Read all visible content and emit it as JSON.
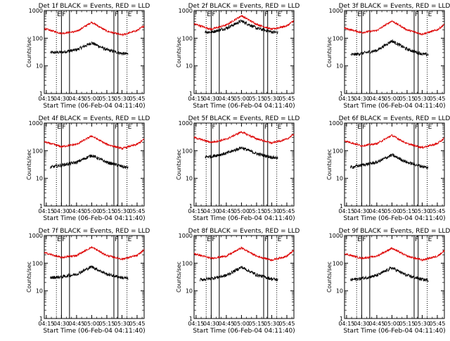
{
  "figure": {
    "start_time_label": "Start Time (06-Feb-04 04:11:40)",
    "ylabel": "Counts/sec",
    "x_tick_labels": [
      "04:15",
      "04:30",
      "04:45",
      "05:00",
      "05:15",
      "05:30",
      "05:45"
    ],
    "y_tick_labels": [
      "1",
      "10",
      "100",
      "1000"
    ],
    "colors": {
      "black_series": "#000000",
      "red_series": "#dd0000",
      "frame": "#000000"
    }
  },
  "chart_data": [
    {
      "type": "line",
      "title": "Det 1f BLACK = Events, RED = LLD",
      "xlabel": "Start Time (06-Feb-04 04:11:40)",
      "ylabel": "Counts/sec",
      "x_unit": "UT time",
      "xlim": [
        "04:13",
        "05:52"
      ],
      "ylim": [
        1,
        1000
      ],
      "yscale": "log",
      "markers": [
        {
          "label": "E",
          "time": "04:25",
          "style": "dotted"
        },
        {
          "label": "F",
          "time": "04:30",
          "style": "solid"
        },
        {
          "label": "",
          "time": "04:38",
          "style": "solid"
        },
        {
          "label": "F",
          "time": "05:22",
          "style": "solid"
        },
        {
          "label": "",
          "time": "05:26",
          "style": "solid"
        },
        {
          "label": "E",
          "time": "05:35",
          "style": "dotted"
        }
      ],
      "series": [
        {
          "color": "black",
          "start": "04:19",
          "end": "05:36",
          "x": [
            "04:19",
            "04:30",
            "04:45",
            "05:00",
            "05:15",
            "05:30",
            "05:36"
          ],
          "values": [
            30,
            31,
            38,
            68,
            38,
            28,
            27
          ]
        },
        {
          "color": "red",
          "start": "04:13",
          "end": "05:52",
          "x": [
            "04:13",
            "04:30",
            "04:45",
            "05:00",
            "05:15",
            "05:30",
            "05:45",
            "05:52"
          ],
          "values": [
            220,
            150,
            175,
            380,
            180,
            130,
            190,
            280
          ]
        }
      ]
    },
    {
      "type": "line",
      "title": "Det 2f BLACK = Events, RED = LLD",
      "xlabel": "Start Time (06-Feb-04 04:11:40)",
      "ylabel": "Counts/sec",
      "x_unit": "UT time",
      "xlim": [
        "04:13",
        "05:52"
      ],
      "ylim": [
        1,
        1000
      ],
      "yscale": "log",
      "markers": [
        {
          "label": "E",
          "time": "04:25",
          "style": "dotted"
        },
        {
          "label": "F",
          "time": "04:30",
          "style": "solid"
        },
        {
          "label": "",
          "time": "04:38",
          "style": "solid"
        },
        {
          "label": "F",
          "time": "05:22",
          "style": "solid"
        },
        {
          "label": "",
          "time": "05:26",
          "style": "solid"
        },
        {
          "label": "E",
          "time": "05:35",
          "style": "dotted"
        }
      ],
      "series": [
        {
          "color": "black",
          "start": "04:24",
          "end": "05:36",
          "x": [
            "04:24",
            "04:30",
            "04:45",
            "05:00",
            "05:15",
            "05:30",
            "05:36"
          ],
          "values": [
            170,
            165,
            230,
            420,
            230,
            170,
            160
          ]
        },
        {
          "color": "red",
          "start": "04:13",
          "end": "05:52",
          "x": [
            "04:13",
            "04:30",
            "04:45",
            "05:00",
            "05:15",
            "05:30",
            "05:45",
            "05:52"
          ],
          "values": [
            330,
            210,
            300,
            650,
            320,
            210,
            280,
            430
          ]
        }
      ]
    },
    {
      "type": "line",
      "title": "Det 3f BLACK = Events, RED = LLD",
      "xlabel": "Start Time (06-Feb-04 04:11:40)",
      "ylabel": "Counts/sec",
      "x_unit": "UT time",
      "xlim": [
        "04:13",
        "05:52"
      ],
      "ylim": [
        1,
        1000
      ],
      "yscale": "log",
      "markers": [
        {
          "label": "E",
          "time": "04:25",
          "style": "dotted"
        },
        {
          "label": "F",
          "time": "04:30",
          "style": "solid"
        },
        {
          "label": "",
          "time": "04:38",
          "style": "solid"
        },
        {
          "label": "F",
          "time": "05:22",
          "style": "solid"
        },
        {
          "label": "",
          "time": "05:26",
          "style": "solid"
        },
        {
          "label": "E",
          "time": "05:35",
          "style": "dotted"
        }
      ],
      "series": [
        {
          "color": "black",
          "start": "04:19",
          "end": "05:36",
          "x": [
            "04:19",
            "04:30",
            "04:45",
            "05:00",
            "05:15",
            "05:30",
            "05:36"
          ],
          "values": [
            25,
            28,
            36,
            80,
            40,
            27,
            25
          ]
        },
        {
          "color": "red",
          "start": "04:13",
          "end": "05:52",
          "x": [
            "04:13",
            "04:30",
            "04:45",
            "05:00",
            "05:15",
            "05:30",
            "05:45",
            "05:52"
          ],
          "values": [
            230,
            160,
            190,
            420,
            200,
            140,
            200,
            310
          ]
        }
      ]
    },
    {
      "type": "line",
      "title": "Det 4f BLACK = Events, RED = LLD",
      "xlabel": "Start Time (06-Feb-04 04:11:40)",
      "ylabel": "Counts/sec",
      "x_unit": "UT time",
      "xlim": [
        "04:13",
        "05:52"
      ],
      "ylim": [
        1,
        1000
      ],
      "yscale": "log",
      "markers": [
        {
          "label": "E",
          "time": "04:25",
          "style": "dotted"
        },
        {
          "label": "F",
          "time": "04:30",
          "style": "solid"
        },
        {
          "label": "",
          "time": "04:38",
          "style": "solid"
        },
        {
          "label": "F",
          "time": "05:22",
          "style": "solid"
        },
        {
          "label": "",
          "time": "05:26",
          "style": "solid"
        },
        {
          "label": "E",
          "time": "05:35",
          "style": "dotted"
        }
      ],
      "series": [
        {
          "color": "black",
          "start": "04:19",
          "end": "05:36",
          "x": [
            "04:19",
            "04:30",
            "04:45",
            "05:00",
            "05:15",
            "05:30",
            "05:36"
          ],
          "values": [
            25,
            30,
            38,
            68,
            38,
            27,
            24
          ]
        },
        {
          "color": "red",
          "start": "04:13",
          "end": "05:52",
          "x": [
            "04:13",
            "04:30",
            "04:45",
            "05:00",
            "05:15",
            "05:30",
            "05:45",
            "05:52"
          ],
          "values": [
            210,
            140,
            170,
            340,
            170,
            120,
            170,
            260
          ]
        }
      ]
    },
    {
      "type": "line",
      "title": "Det 5f BLACK = Events, RED = LLD",
      "xlabel": "Start Time (06-Feb-04 04:11:40)",
      "ylabel": "Counts/sec",
      "x_unit": "UT time",
      "xlim": [
        "04:13",
        "05:52"
      ],
      "ylim": [
        1,
        1000
      ],
      "yscale": "log",
      "markers": [
        {
          "label": "",
          "time": "04:25",
          "style": "dotted"
        },
        {
          "label": "F",
          "time": "04:30",
          "style": "solid"
        },
        {
          "label": "",
          "time": "04:38",
          "style": "solid"
        },
        {
          "label": "F",
          "time": "05:22",
          "style": "solid"
        },
        {
          "label": "",
          "time": "05:26",
          "style": "solid"
        },
        {
          "label": "E",
          "time": "05:35",
          "style": "dotted"
        }
      ],
      "series": [
        {
          "color": "black",
          "start": "04:24",
          "end": "05:36",
          "x": [
            "04:24",
            "04:30",
            "04:45",
            "05:00",
            "05:15",
            "05:30",
            "05:36"
          ],
          "values": [
            60,
            62,
            80,
            130,
            78,
            58,
            55
          ]
        },
        {
          "color": "red",
          "start": "04:13",
          "end": "05:52",
          "x": [
            "04:13",
            "04:30",
            "04:45",
            "05:00",
            "05:15",
            "05:30",
            "05:45",
            "05:52"
          ],
          "values": [
            300,
            200,
            260,
            480,
            270,
            190,
            260,
            400
          ]
        }
      ]
    },
    {
      "type": "line",
      "title": "Det 6f BLACK = Events, RED = LLD",
      "xlabel": "Start Time (06-Feb-04 04:11:40)",
      "ylabel": "Counts/sec",
      "x_unit": "UT time",
      "xlim": [
        "04:13",
        "05:52"
      ],
      "ylim": [
        1,
        1000
      ],
      "yscale": "log",
      "markers": [
        {
          "label": "E",
          "time": "04:25",
          "style": "dotted"
        },
        {
          "label": "F",
          "time": "04:30",
          "style": "solid"
        },
        {
          "label": "",
          "time": "04:38",
          "style": "solid"
        },
        {
          "label": "F",
          "time": "05:22",
          "style": "solid"
        },
        {
          "label": "",
          "time": "05:26",
          "style": "solid"
        },
        {
          "label": "E",
          "time": "05:35",
          "style": "dotted"
        }
      ],
      "series": [
        {
          "color": "black",
          "start": "04:19",
          "end": "05:36",
          "x": [
            "04:19",
            "04:30",
            "04:45",
            "05:00",
            "05:15",
            "05:30",
            "05:36"
          ],
          "values": [
            25,
            30,
            38,
            70,
            38,
            27,
            24
          ]
        },
        {
          "color": "red",
          "start": "04:13",
          "end": "05:52",
          "x": [
            "04:13",
            "04:30",
            "04:45",
            "05:00",
            "05:15",
            "05:30",
            "05:45",
            "05:52"
          ],
          "values": [
            230,
            150,
            180,
            360,
            180,
            130,
            180,
            280
          ]
        }
      ]
    },
    {
      "type": "line",
      "title": "Det 7f BLACK = Events, RED = LLD",
      "xlabel": "Start Time (06-Feb-04 04:11:40)",
      "ylabel": "Counts/sec",
      "x_unit": "UT time",
      "xlim": [
        "04:13",
        "05:52"
      ],
      "ylim": [
        1,
        1000
      ],
      "yscale": "log",
      "markers": [
        {
          "label": "E",
          "time": "04:25",
          "style": "dotted"
        },
        {
          "label": "F",
          "time": "04:30",
          "style": "solid"
        },
        {
          "label": "",
          "time": "04:38",
          "style": "solid"
        },
        {
          "label": "F",
          "time": "05:22",
          "style": "solid"
        },
        {
          "label": "",
          "time": "05:26",
          "style": "solid"
        },
        {
          "label": "E",
          "time": "05:35",
          "style": "dotted"
        }
      ],
      "series": [
        {
          "color": "black",
          "start": "04:19",
          "end": "05:36",
          "x": [
            "04:19",
            "04:30",
            "04:45",
            "05:00",
            "05:15",
            "05:30",
            "05:36"
          ],
          "values": [
            30,
            32,
            40,
            75,
            40,
            30,
            28
          ]
        },
        {
          "color": "red",
          "start": "04:13",
          "end": "05:52",
          "x": [
            "04:13",
            "04:30",
            "04:45",
            "05:00",
            "05:15",
            "05:30",
            "05:45",
            "05:52"
          ],
          "values": [
            240,
            160,
            190,
            380,
            190,
            140,
            190,
            300
          ]
        }
      ]
    },
    {
      "type": "line",
      "title": "Det 8f BLACK = Events, RED = LLD",
      "xlabel": "Start Time (06-Feb-04 04:11:40)",
      "ylabel": "Counts/sec",
      "x_unit": "UT time",
      "xlim": [
        "04:13",
        "05:52"
      ],
      "ylim": [
        1,
        1000
      ],
      "yscale": "log",
      "markers": [
        {
          "label": "E",
          "time": "04:25",
          "style": "dotted"
        },
        {
          "label": "F",
          "time": "04:30",
          "style": "solid"
        },
        {
          "label": "",
          "time": "04:38",
          "style": "solid"
        },
        {
          "label": "F",
          "time": "05:22",
          "style": "solid"
        },
        {
          "label": "",
          "time": "05:26",
          "style": "solid"
        },
        {
          "label": "E",
          "time": "05:35",
          "style": "dotted"
        }
      ],
      "series": [
        {
          "color": "black",
          "start": "04:19",
          "end": "05:36",
          "x": [
            "04:19",
            "04:30",
            "04:45",
            "05:00",
            "05:15",
            "05:30",
            "05:36"
          ],
          "values": [
            25,
            28,
            36,
            72,
            38,
            27,
            25
          ]
        },
        {
          "color": "red",
          "start": "04:13",
          "end": "05:52",
          "x": [
            "04:13",
            "04:30",
            "04:45",
            "05:00",
            "05:15",
            "05:30",
            "05:45",
            "05:52"
          ],
          "values": [
            220,
            150,
            180,
            360,
            180,
            130,
            180,
            290
          ]
        }
      ]
    },
    {
      "type": "line",
      "title": "Det 9f BLACK = Events, RED = LLD",
      "xlabel": "Start Time (06-Feb-04 04:11:40)",
      "ylabel": "Counts/sec",
      "x_unit": "UT time",
      "xlim": [
        "04:13",
        "05:52"
      ],
      "ylim": [
        1,
        1000
      ],
      "yscale": "log",
      "markers": [
        {
          "label": "E",
          "time": "04:25",
          "style": "dotted"
        },
        {
          "label": "F",
          "time": "04:30",
          "style": "solid"
        },
        {
          "label": "",
          "time": "04:38",
          "style": "solid"
        },
        {
          "label": "F",
          "time": "05:22",
          "style": "solid"
        },
        {
          "label": "",
          "time": "05:26",
          "style": "solid"
        },
        {
          "label": "E",
          "time": "05:35",
          "style": "dotted"
        }
      ],
      "series": [
        {
          "color": "black",
          "start": "04:19",
          "end": "05:36",
          "x": [
            "04:19",
            "04:30",
            "04:45",
            "05:00",
            "05:15",
            "05:30",
            "05:36"
          ],
          "values": [
            25,
            28,
            36,
            68,
            36,
            26,
            24
          ]
        },
        {
          "color": "red",
          "start": "04:13",
          "end": "05:52",
          "x": [
            "04:13",
            "04:30",
            "04:45",
            "05:00",
            "05:15",
            "05:30",
            "05:45",
            "05:52"
          ],
          "values": [
            220,
            150,
            180,
            350,
            180,
            130,
            180,
            280
          ]
        }
      ]
    }
  ]
}
